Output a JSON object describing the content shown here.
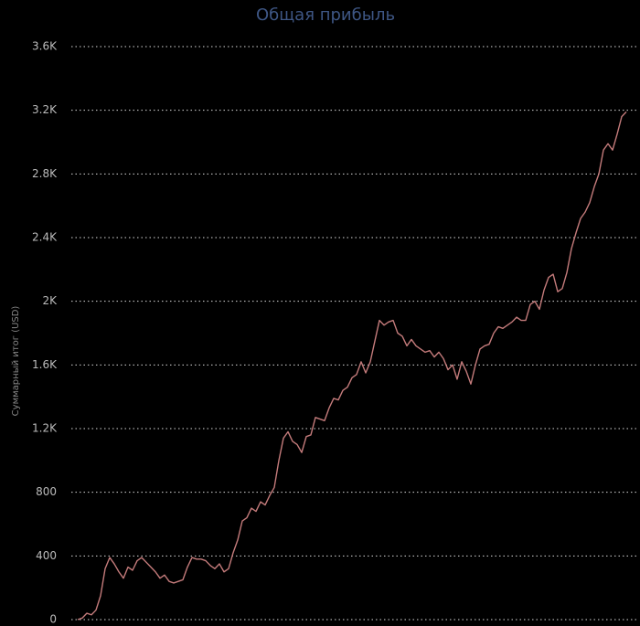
{
  "chart_data": {
    "type": "line",
    "title": "Общая прибыль",
    "y_label": "Суммарный итог (USD)",
    "color": "#c47b7b",
    "grid": true,
    "ylim": [
      0,
      3600
    ],
    "yticks": [
      0,
      400,
      800,
      {
        "value": 1200,
        "label": "1.2K"
      },
      {
        "value": 1600,
        "label": "1.6K"
      },
      {
        "value": 2000,
        "label": "2K"
      },
      {
        "value": 2400,
        "label": "2.4K"
      },
      {
        "value": 2800,
        "label": "2.8K"
      },
      {
        "value": 3200,
        "label": "3.2K"
      },
      {
        "value": 3600,
        "label": "3.6K"
      }
    ],
    "values": [
      0,
      10,
      40,
      30,
      60,
      150,
      320,
      390,
      350,
      300,
      260,
      330,
      310,
      370,
      390,
      360,
      330,
      300,
      260,
      280,
      240,
      230,
      240,
      250,
      330,
      390,
      380,
      380,
      370,
      340,
      320,
      350,
      300,
      320,
      420,
      500,
      620,
      640,
      700,
      680,
      740,
      720,
      780,
      830,
      1000,
      1140,
      1180,
      1120,
      1100,
      1050,
      1150,
      1160,
      1270,
      1260,
      1250,
      1330,
      1390,
      1380,
      1440,
      1460,
      1520,
      1540,
      1620,
      1550,
      1620,
      1750,
      1880,
      1850,
      1870,
      1880,
      1800,
      1780,
      1720,
      1760,
      1720,
      1700,
      1680,
      1690,
      1650,
      1680,
      1640,
      1570,
      1600,
      1510,
      1620,
      1560,
      1480,
      1600,
      1700,
      1720,
      1730,
      1800,
      1840,
      1830,
      1850,
      1870,
      1900,
      1880,
      1880,
      1980,
      2000,
      1950,
      2070,
      2150,
      2170,
      2060,
      2080,
      2180,
      2330,
      2430,
      2520,
      2560,
      2620,
      2720,
      2800,
      2950,
      2990,
      2950,
      3050,
      3160,
      3190
    ]
  }
}
